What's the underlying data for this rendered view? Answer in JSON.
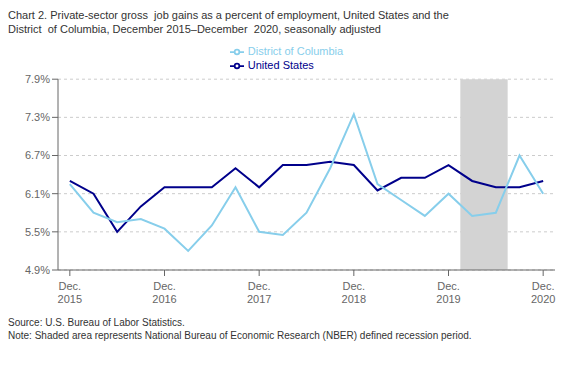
{
  "chart_data": {
    "type": "line",
    "title": "Chart 2. Private-sector gross  job gains as a percent of employment, United States and the\nDistrict  of Columbia, December 2015–December  2020, seasonally adjusted",
    "annotations": [
      "Source: U.S. Bureau of Labor Statistics.",
      "Note: Shaded area represents National Bureau of Economic Research (NBER) defined recession period."
    ],
    "categories": [
      "Dec.\n2015",
      null,
      null,
      null,
      "Dec.\n2016",
      null,
      null,
      null,
      "Dec.\n2017",
      null,
      null,
      null,
      "Dec.\n2018",
      null,
      null,
      null,
      "Dec.\n2019",
      null,
      null,
      null,
      "Dec.\n2020"
    ],
    "series": [
      {
        "name": "United States",
        "color": "#00008B",
        "values": [
          6.3,
          6.1,
          5.5,
          5.9,
          6.2,
          6.2,
          6.2,
          6.5,
          6.2,
          6.55,
          6.55,
          6.6,
          6.55,
          6.15,
          6.35,
          6.35,
          6.55,
          6.3,
          6.2,
          6.2,
          6.3
        ]
      },
      {
        "name": "District of Columbia",
        "color": "#87CEEB",
        "values": [
          6.25,
          5.8,
          5.65,
          5.7,
          5.55,
          5.2,
          5.6,
          6.2,
          5.5,
          5.45,
          5.8,
          6.5,
          7.35,
          6.25,
          6.0,
          5.75,
          6.1,
          5.75,
          5.8,
          6.7,
          6.1
        ]
      }
    ],
    "xlim": [
      -0.5,
      20.5
    ],
    "ylim": [
      4.9,
      7.9
    ],
    "yticks": [
      {
        "value": 4.9,
        "label": "4.9%"
      },
      {
        "value": 5.5,
        "label": "5.5%"
      },
      {
        "value": 6.1,
        "label": "6.1%"
      },
      {
        "value": 6.7,
        "label": "6.7%"
      },
      {
        "value": 7.3,
        "label": "7.3%"
      },
      {
        "value": 7.9,
        "label": "7.9%"
      }
    ],
    "grid": true,
    "legend": "top",
    "shaded_range": {
      "start": 16.5,
      "end": 18.5,
      "color": "#D3D3D3"
    }
  }
}
